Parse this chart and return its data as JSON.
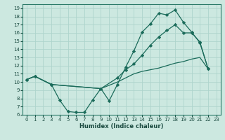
{
  "xlabel": "Humidex (Indice chaleur)",
  "bg_color": "#cce8e0",
  "grid_color": "#aed4cc",
  "line_color": "#1a6b5a",
  "xlim": [
    -0.5,
    23.5
  ],
  "ylim": [
    6,
    19.5
  ],
  "xticks": [
    0,
    1,
    2,
    3,
    4,
    5,
    6,
    7,
    8,
    9,
    10,
    11,
    12,
    13,
    14,
    15,
    16,
    17,
    18,
    19,
    20,
    21,
    22,
    23
  ],
  "yticks": [
    6,
    7,
    8,
    9,
    10,
    11,
    12,
    13,
    14,
    15,
    16,
    17,
    18,
    19
  ],
  "curve1_x": [
    0,
    1,
    3,
    4,
    5,
    6,
    7,
    8,
    9,
    10,
    11,
    12,
    13,
    14,
    15,
    16,
    17,
    18,
    19,
    20,
    21,
    22
  ],
  "curve1_y": [
    10.3,
    10.7,
    9.7,
    7.8,
    6.4,
    6.3,
    6.3,
    7.8,
    9.2,
    7.7,
    9.7,
    11.8,
    13.8,
    16.1,
    17.1,
    18.4,
    18.2,
    18.8,
    17.3,
    16.1,
    14.8,
    11.6
  ],
  "curve2_x": [
    0,
    1,
    3,
    9,
    11,
    12,
    13,
    14,
    15,
    16,
    17,
    18,
    19,
    20,
    21,
    22
  ],
  "curve2_y": [
    10.3,
    10.7,
    9.7,
    9.2,
    10.5,
    11.5,
    12.2,
    13.3,
    14.5,
    15.5,
    16.3,
    17.0,
    16.0,
    16.0,
    14.9,
    11.6
  ],
  "curve3_x": [
    0,
    1,
    3,
    9,
    11,
    12,
    13,
    14,
    15,
    16,
    17,
    18,
    19,
    20,
    21,
    22
  ],
  "curve3_y": [
    10.3,
    10.7,
    9.7,
    9.2,
    10.0,
    10.5,
    11.0,
    11.3,
    11.5,
    11.7,
    12.0,
    12.3,
    12.5,
    12.8,
    13.0,
    11.6
  ]
}
